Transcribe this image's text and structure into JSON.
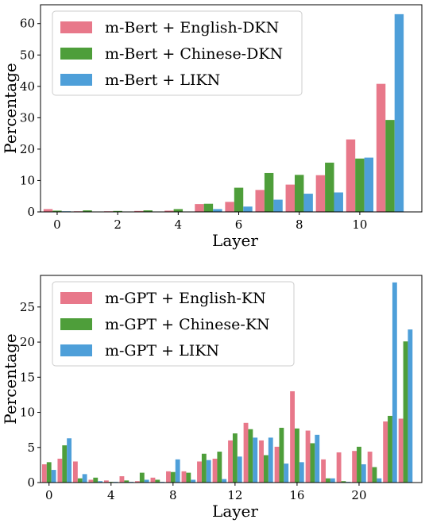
{
  "colors": {
    "pink": "#E8788A",
    "green": "#4E9E3A",
    "blue": "#4E9FD9"
  },
  "chart_data": [
    {
      "type": "bar",
      "xlabel": "Layer",
      "ylabel": "Percentage",
      "categories": [
        0,
        1,
        2,
        3,
        4,
        5,
        6,
        7,
        8,
        9,
        10,
        11
      ],
      "x_ticks": [
        0,
        2,
        4,
        6,
        8,
        10
      ],
      "y_ticks": [
        0,
        10,
        20,
        30,
        40,
        50,
        60
      ],
      "ylim": [
        0,
        66
      ],
      "legend_position": "top-left",
      "grid": false,
      "series": [
        {
          "name": "m-Bert + English-DKN",
          "color": "pink",
          "values": [
            0.9,
            0.2,
            0.2,
            0.3,
            0.4,
            2.5,
            3.2,
            7.0,
            8.7,
            11.7,
            23.1,
            40.8
          ]
        },
        {
          "name": "m-Bert + Chinese-DKN",
          "color": "green",
          "values": [
            0.4,
            0.5,
            0.3,
            0.5,
            0.9,
            2.6,
            7.7,
            12.4,
            11.8,
            15.7,
            17.0,
            29.3
          ]
        },
        {
          "name": "m-Bert + LIKN",
          "color": "blue",
          "values": [
            0.2,
            0.1,
            0.1,
            0.1,
            0.1,
            0.9,
            1.7,
            3.9,
            5.8,
            6.2,
            17.3,
            63.0
          ]
        }
      ]
    },
    {
      "type": "bar",
      "xlabel": "Layer",
      "ylabel": "Percentage",
      "categories": [
        0,
        1,
        2,
        3,
        4,
        5,
        6,
        7,
        8,
        9,
        10,
        11,
        12,
        13,
        14,
        15,
        16,
        17,
        18,
        19,
        20,
        21,
        22,
        23
      ],
      "x_ticks": [
        0,
        4,
        8,
        12,
        16,
        20
      ],
      "y_ticks": [
        0,
        5,
        10,
        15,
        20,
        25
      ],
      "ylim": [
        0,
        29.5
      ],
      "legend_position": "top-left",
      "grid": false,
      "series": [
        {
          "name": "m-GPT + English-KN",
          "color": "pink",
          "values": [
            2.6,
            3.4,
            3.0,
            0.4,
            0.3,
            0.9,
            0.2,
            0.7,
            1.6,
            1.6,
            3.0,
            3.4,
            6.0,
            8.5,
            6.0,
            5.1,
            13.0,
            7.4,
            3.3,
            4.3,
            4.5,
            4.4,
            8.7,
            9.1
          ]
        },
        {
          "name": "m-GPT + Chinese-KN",
          "color": "green",
          "values": [
            2.9,
            5.3,
            0.6,
            0.7,
            0.1,
            0.3,
            1.4,
            0.4,
            1.5,
            1.4,
            4.1,
            4.4,
            7.0,
            7.6,
            3.9,
            7.8,
            7.7,
            5.6,
            0.6,
            0.2,
            5.1,
            2.2,
            9.5,
            20.1
          ]
        },
        {
          "name": "m-GPT + LIKN",
          "color": "blue",
          "values": [
            1.8,
            6.3,
            1.2,
            0.2,
            0.1,
            0.1,
            0.4,
            0.1,
            3.3,
            0.4,
            3.2,
            0.5,
            3.7,
            6.4,
            6.4,
            2.7,
            2.9,
            6.8,
            0.6,
            0.1,
            2.6,
            0.6,
            28.5,
            21.8
          ]
        }
      ]
    }
  ]
}
